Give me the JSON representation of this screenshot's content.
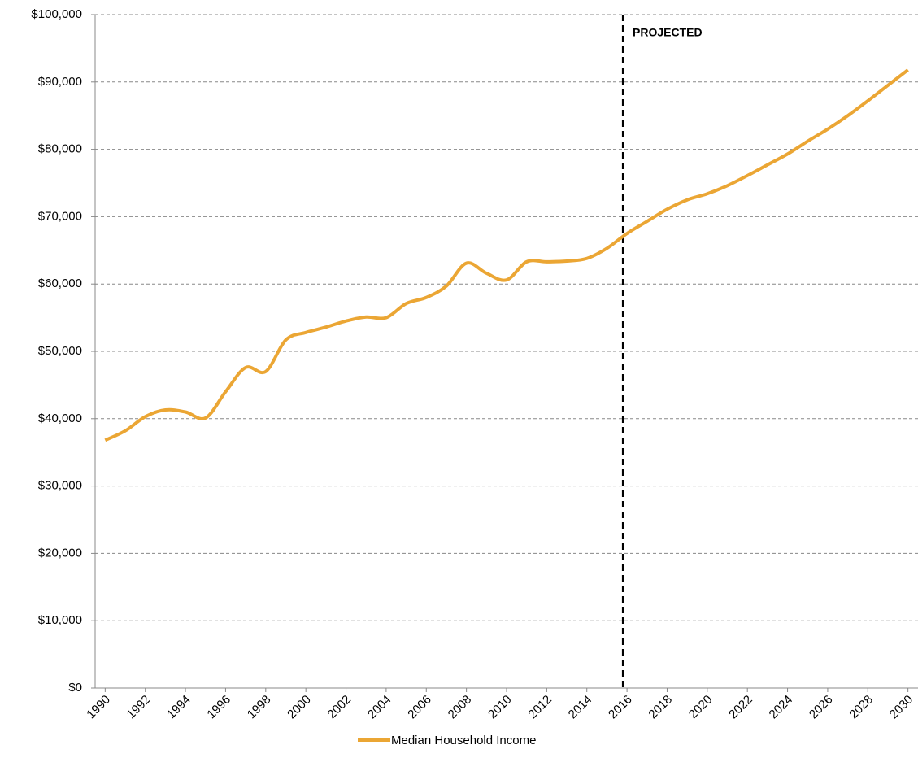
{
  "chart_data": {
    "type": "line",
    "annotation": "PROJECTED",
    "projection_start": 2015.8,
    "x": [
      1990,
      1991,
      1992,
      1993,
      1994,
      1995,
      1996,
      1997,
      1998,
      1999,
      2000,
      2001,
      2002,
      2003,
      2004,
      2005,
      2006,
      2007,
      2008,
      2009,
      2010,
      2011,
      2012,
      2013,
      2014,
      2015,
      2016,
      2017,
      2018,
      2019,
      2020,
      2021,
      2022,
      2023,
      2024,
      2025,
      2026,
      2027,
      2028,
      2029,
      2030
    ],
    "series": [
      {
        "name": "Median Household Income",
        "color": "#eba634",
        "values": [
          36800,
          38200,
          40300,
          41300,
          41000,
          40100,
          44000,
          47600,
          47000,
          51700,
          52800,
          53600,
          54500,
          55100,
          55000,
          57100,
          58000,
          59700,
          63100,
          61600,
          60600,
          63300,
          63300,
          63400,
          63800,
          65300,
          67500,
          69300,
          71100,
          72500,
          73400,
          74600,
          76100,
          77700,
          79300,
          81200,
          83000,
          85000,
          87200,
          89500,
          91800
        ]
      }
    ],
    "xlim": [
      1989.5,
      2030.5
    ],
    "xticks": [
      1990,
      1992,
      1994,
      1996,
      1998,
      2000,
      2002,
      2004,
      2006,
      2008,
      2010,
      2012,
      2014,
      2016,
      2018,
      2020,
      2022,
      2024,
      2026,
      2028,
      2030
    ],
    "ylim": [
      0,
      100000
    ],
    "yticks": [
      {
        "value": 0,
        "label": "$0"
      },
      {
        "value": 10000,
        "label": "$10,000"
      },
      {
        "value": 20000,
        "label": "$20,000"
      },
      {
        "value": 30000,
        "label": "$30,000"
      },
      {
        "value": 40000,
        "label": "$40,000"
      },
      {
        "value": 50000,
        "label": "$50,000"
      },
      {
        "value": 60000,
        "label": "$60,000"
      },
      {
        "value": 70000,
        "label": "$70,000"
      },
      {
        "value": 80000,
        "label": "$80,000"
      },
      {
        "value": 90000,
        "label": "$90,000"
      },
      {
        "value": 100000,
        "label": "$100,000"
      }
    ],
    "grid": true,
    "legend": "bottom"
  }
}
